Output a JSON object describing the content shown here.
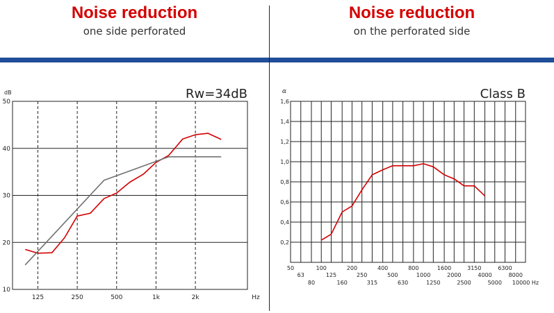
{
  "left_panel": {
    "title": "Noise reduction",
    "subtitle": "one side perforated"
  },
  "right_panel": {
    "title": "Noise reduction",
    "subtitle": "on the perforated side"
  },
  "colors": {
    "band": "#1f4e9a",
    "accent": "#d40000",
    "reference": "#707070"
  },
  "chart_data": [
    {
      "type": "line",
      "annotation": "Rw=34dB",
      "ylabel": "dB",
      "xlabel": "Hz",
      "ylim": [
        10,
        50
      ],
      "x_scale": "log",
      "xlim": [
        80,
        5000
      ],
      "yticks": [
        10,
        20,
        30,
        40,
        50
      ],
      "xticks": [
        {
          "value": 125,
          "label": "125"
        },
        {
          "value": 250,
          "label": "250"
        },
        {
          "value": 500,
          "label": "500"
        },
        {
          "value": 1000,
          "label": "1k"
        },
        {
          "value": 2000,
          "label": "2k"
        },
        {
          "value": 5000,
          "label": "Hz"
        }
      ],
      "grid": true,
      "series": [
        {
          "color": "#d40000",
          "x": [
            100,
            125,
            160,
            200,
            250,
            315,
            400,
            500,
            630,
            800,
            1000,
            1250,
            1600,
            2000,
            2500,
            3150
          ],
          "y": [
            18.5,
            17.7,
            17.8,
            21,
            25.6,
            26.2,
            29.3,
            30.5,
            32.8,
            34.5,
            37,
            38.5,
            42,
            42.9,
            43.2,
            41.9
          ]
        },
        {
          "color": "#707070",
          "x": [
            100,
            400,
            1250,
            3150
          ],
          "y": [
            15.2,
            33.2,
            38.2,
            38.2
          ]
        }
      ]
    },
    {
      "type": "line",
      "annotation": "Class B",
      "ylabel": "α",
      "ylim": [
        0,
        1.6
      ],
      "yticks": [
        "0,2",
        "0,4",
        "0,6",
        "0,8",
        "1,0",
        "1,2",
        "1,4",
        "1,6"
      ],
      "x_scale": "log",
      "xlim": [
        50,
        10000
      ],
      "xticks_upper": [
        "50",
        "100",
        "200",
        "400",
        "800",
        "1600",
        "3150",
        "6300"
      ],
      "xticks_mid": [
        "63",
        "125",
        "250",
        "500",
        "1000",
        "2000",
        "4000",
        "8000"
      ],
      "xticks_lower": [
        "80",
        "160",
        "315",
        "630",
        "1250",
        "2500",
        "5000",
        "10000 Hz"
      ],
      "grid": true,
      "series": [
        {
          "color": "#d40000",
          "x": [
            100,
            125,
            160,
            200,
            250,
            315,
            400,
            500,
            630,
            800,
            1000,
            1250,
            1600,
            2000,
            2500,
            3150,
            4000
          ],
          "y": [
            0.22,
            0.28,
            0.5,
            0.56,
            0.72,
            0.87,
            0.92,
            0.96,
            0.96,
            0.96,
            0.98,
            0.95,
            0.87,
            0.83,
            0.76,
            0.76,
            0.66
          ]
        }
      ]
    }
  ]
}
